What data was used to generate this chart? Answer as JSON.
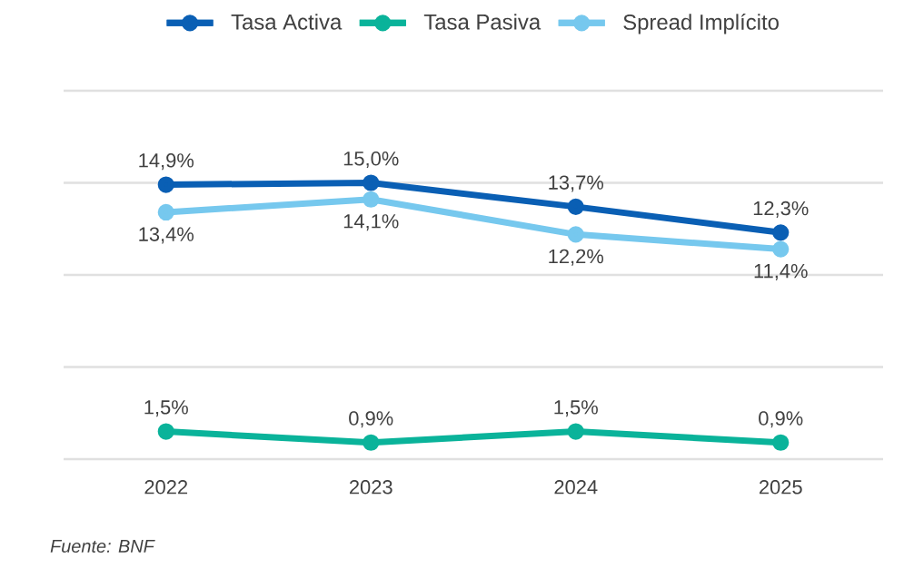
{
  "chart_data": {
    "type": "line",
    "categories": [
      "2022",
      "2023",
      "2024",
      "2025"
    ],
    "series": [
      {
        "name": "Tasa Activa",
        "color": "#0a5fb4",
        "values": [
          14.9,
          15.0,
          13.7,
          12.3
        ],
        "value_labels": [
          "14,9%",
          "15,0%",
          "13,7%",
          "12,3%"
        ]
      },
      {
        "name": "Tasa Pasiva",
        "color": "#0ab39a",
        "values": [
          1.5,
          0.9,
          1.5,
          0.9
        ],
        "value_labels": [
          "1,5%",
          "0,9%",
          "1,5%",
          "0,9%"
        ]
      },
      {
        "name": "Spread Implícito",
        "color": "#76c8ee",
        "values": [
          13.4,
          14.1,
          12.2,
          11.4
        ],
        "value_labels": [
          "13,4%",
          "14,1%",
          "12,2%",
          "11,4%"
        ]
      }
    ],
    "ylim": [
      0,
      20
    ],
    "yticks": [
      {
        "value": 0,
        "label": null
      },
      {
        "value": 5,
        "label": null
      },
      {
        "value": 10,
        "label": null
      },
      {
        "value": 15,
        "label": null
      },
      {
        "value": 20,
        "label": null
      }
    ],
    "grid": "y",
    "legend": "top",
    "marker": "circle",
    "line_style": "solid",
    "tick_labels": "x",
    "annotations": [
      "Fuente: BNF"
    ]
  }
}
